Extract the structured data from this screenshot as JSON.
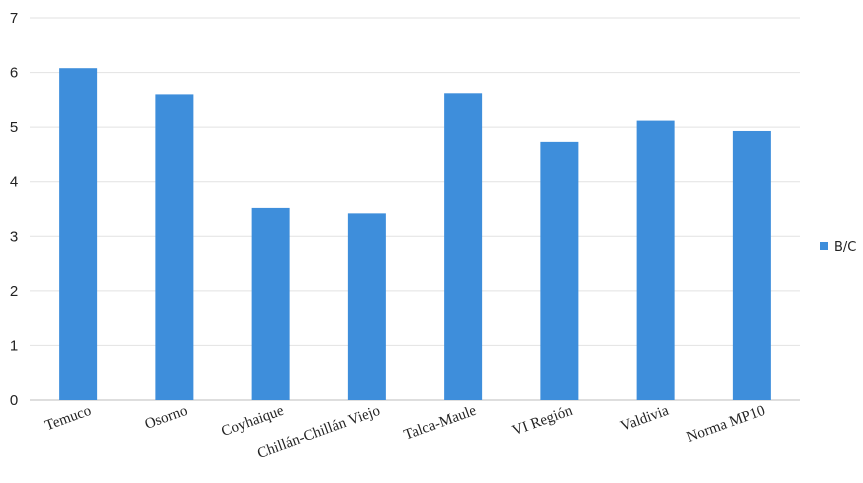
{
  "chart_data": {
    "type": "bar",
    "categories": [
      "Temuco",
      "Osorno",
      "Coyhaique",
      "Chillán-Chillán Viejo",
      "Talca-Maule",
      "VI Región",
      "Valdivia",
      "Norma MP10"
    ],
    "series": [
      {
        "name": "B/C",
        "values": [
          6.08,
          5.6,
          3.52,
          3.42,
          5.62,
          4.73,
          5.12,
          4.93
        ]
      }
    ],
    "ylim": [
      0,
      7
    ],
    "yticks": [
      "0",
      "1",
      "2",
      "3",
      "4",
      "5",
      "6",
      "7"
    ],
    "grid": true,
    "legend_position": "right",
    "bar_color": "#3e8edb"
  }
}
